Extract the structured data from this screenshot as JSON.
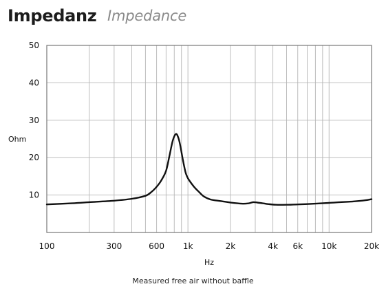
{
  "header": {
    "title": "Impedanz",
    "subtitle": "Impedance"
  },
  "caption": "Measured free air without baffle",
  "chart_data": {
    "type": "line",
    "xscale": "log",
    "xlim": [
      100,
      20000
    ],
    "ylim": [
      0,
      50
    ],
    "xlabel": "Hz",
    "ylabel": "Ohm",
    "grid": true,
    "y_ticks": [
      10,
      20,
      30,
      40,
      50
    ],
    "x_ticks": [
      {
        "value": 100,
        "label": "100"
      },
      {
        "value": 300,
        "label": "300"
      },
      {
        "value": 600,
        "label": "600"
      },
      {
        "value": 1000,
        "label": "1k"
      },
      {
        "value": 2000,
        "label": "2k"
      },
      {
        "value": 4000,
        "label": "4k"
      },
      {
        "value": 6000,
        "label": "6k"
      },
      {
        "value": 10000,
        "label": "10k"
      },
      {
        "value": 20000,
        "label": "20k"
      }
    ],
    "series": [
      {
        "values": [
          [
            100,
            7.5
          ],
          [
            150,
            7.8
          ],
          [
            200,
            8.1
          ],
          [
            300,
            8.5
          ],
          [
            400,
            9.0
          ],
          [
            500,
            9.8
          ],
          [
            550,
            10.8
          ],
          [
            600,
            12.2
          ],
          [
            650,
            14.0
          ],
          [
            700,
            16.5
          ],
          [
            740,
            20.5
          ],
          [
            780,
            24.5
          ],
          [
            820,
            26.3
          ],
          [
            850,
            25.6
          ],
          [
            880,
            23.5
          ],
          [
            920,
            19.5
          ],
          [
            960,
            16.2
          ],
          [
            1000,
            14.5
          ],
          [
            1100,
            12.3
          ],
          [
            1200,
            10.8
          ],
          [
            1300,
            9.6
          ],
          [
            1450,
            8.8
          ],
          [
            1700,
            8.4
          ],
          [
            2000,
            8.0
          ],
          [
            2400,
            7.7
          ],
          [
            2700,
            7.8
          ],
          [
            2900,
            8.1
          ],
          [
            3100,
            8.0
          ],
          [
            3400,
            7.8
          ],
          [
            3700,
            7.6
          ],
          [
            4200,
            7.4
          ],
          [
            5000,
            7.4
          ],
          [
            6000,
            7.5
          ],
          [
            8000,
            7.7
          ],
          [
            10000,
            7.9
          ],
          [
            12000,
            8.1
          ],
          [
            15000,
            8.3
          ],
          [
            18000,
            8.6
          ],
          [
            20000,
            8.9
          ]
        ]
      }
    ]
  }
}
